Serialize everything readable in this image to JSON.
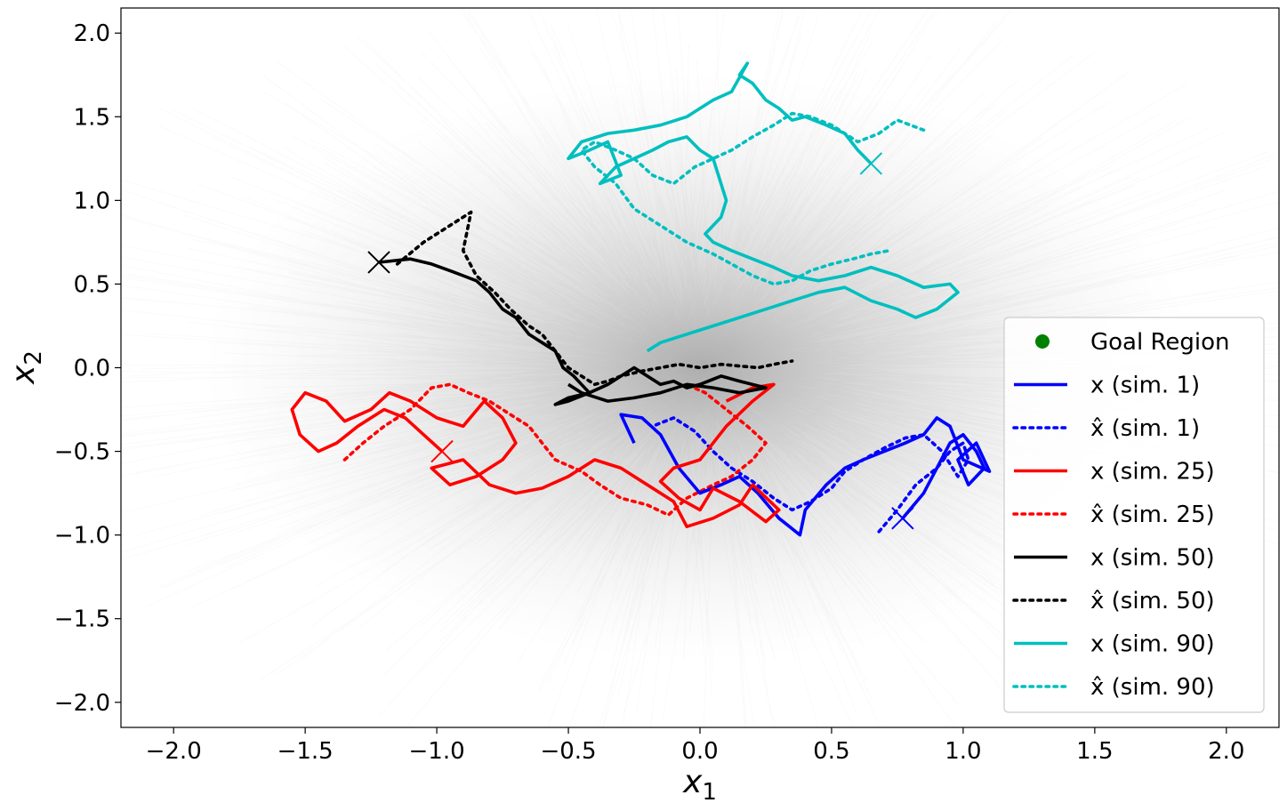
{
  "chart_data": {
    "type": "line",
    "title": "",
    "xlabel": "x",
    "xlabel_sub": "1",
    "ylabel": "x",
    "ylabel_sub": "2",
    "xlim": [
      -2.2,
      2.2
    ],
    "ylim": [
      -2.15,
      2.15
    ],
    "xticks": [
      -2.0,
      -1.5,
      -1.0,
      -0.5,
      0.0,
      0.5,
      1.0,
      1.5,
      2.0
    ],
    "xtick_labels": [
      "−2.0",
      "−1.5",
      "−1.0",
      "−0.5",
      "0.0",
      "0.5",
      "1.0",
      "1.5",
      "2.0"
    ],
    "yticks": [
      2.0,
      1.5,
      1.0,
      0.5,
      0.0,
      -0.5,
      -1.0,
      -1.5,
      -2.0
    ],
    "ytick_labels": [
      "2.0",
      "1.5",
      "1.0",
      "0.5",
      "0.0",
      "−0.5",
      "−1.0",
      "−1.5",
      "−2.0"
    ],
    "grid": false,
    "legend_position": "lower-right",
    "background_cloud": {
      "color": "#8c8c8c",
      "center": [
        0.0,
        0.0
      ],
      "description": "many faint gray simulated trajectories"
    },
    "legend": [
      {
        "label": "Goal Region",
        "marker": "dot",
        "color": "#008000"
      },
      {
        "label": "x (sim. 1)",
        "color": "#0000ff",
        "style": "solid"
      },
      {
        "label": "x̂ (sim. 1)",
        "color": "#0000ff",
        "style": "dotted"
      },
      {
        "label": "x (sim. 25)",
        "color": "#ff0000",
        "style": "solid"
      },
      {
        "label": "x̂ (sim. 25)",
        "color": "#ff0000",
        "style": "dotted"
      },
      {
        "label": "x (sim. 50)",
        "color": "#000000",
        "style": "solid"
      },
      {
        "label": "x̂ (sim. 50)",
        "color": "#000000",
        "style": "dotted"
      },
      {
        "label": "x (sim. 90)",
        "color": "#00bfbf",
        "style": "solid"
      },
      {
        "label": "x̂ (sim. 90)",
        "color": "#00bfbf",
        "style": "dotted"
      }
    ],
    "series": [
      {
        "name": "x (sim. 1)",
        "color": "#0000ff",
        "style": "solid",
        "x": [
          0.77,
          0.85,
          0.9,
          0.95,
          1.0,
          1.05,
          1.08,
          1.02,
          0.98,
          1.05,
          1.1,
          1.0,
          0.95,
          0.9,
          0.85,
          0.78,
          0.7,
          0.62,
          0.55,
          0.48,
          0.4,
          0.38,
          0.3,
          0.22,
          0.15,
          0.08,
          0.0,
          -0.08,
          -0.15,
          -0.22,
          -0.3,
          -0.25
        ],
        "y": [
          -0.9,
          -0.75,
          -0.6,
          -0.45,
          -0.4,
          -0.5,
          -0.6,
          -0.7,
          -0.55,
          -0.45,
          -0.62,
          -0.55,
          -0.35,
          -0.3,
          -0.4,
          -0.45,
          -0.5,
          -0.55,
          -0.6,
          -0.7,
          -0.85,
          -1.0,
          -0.9,
          -0.75,
          -0.65,
          -0.7,
          -0.75,
          -0.6,
          -0.4,
          -0.3,
          -0.28,
          -0.45
        ]
      },
      {
        "name": "x̂ (sim. 1)",
        "color": "#0000ff",
        "style": "dotted",
        "x": [
          0.68,
          0.75,
          0.82,
          0.9,
          0.95,
          1.0,
          1.02,
          0.98,
          0.92,
          0.85,
          0.78,
          0.7,
          0.62,
          0.55,
          0.5,
          0.42,
          0.35,
          0.28,
          0.2,
          0.12,
          0.05,
          -0.02,
          -0.1,
          -0.18
        ],
        "y": [
          -0.98,
          -0.85,
          -0.7,
          -0.6,
          -0.5,
          -0.45,
          -0.55,
          -0.65,
          -0.5,
          -0.4,
          -0.42,
          -0.48,
          -0.55,
          -0.62,
          -0.72,
          -0.8,
          -0.85,
          -0.78,
          -0.68,
          -0.6,
          -0.5,
          -0.38,
          -0.3,
          -0.35
        ]
      },
      {
        "name": "x (sim. 25)",
        "color": "#ff0000",
        "style": "solid",
        "x": [
          -0.98,
          -1.05,
          -1.12,
          -1.2,
          -1.3,
          -1.38,
          -1.45,
          -1.52,
          -1.55,
          -1.5,
          -1.42,
          -1.35,
          -1.25,
          -1.18,
          -1.1,
          -1.0,
          -0.9,
          -0.82,
          -0.75,
          -0.7,
          -0.75,
          -0.85,
          -0.95,
          -1.02,
          -0.9,
          -0.8,
          -0.7,
          -0.6,
          -0.5,
          -0.4,
          -0.3,
          -0.2,
          -0.1,
          -0.05,
          0.05,
          0.15,
          0.2,
          0.3,
          0.25,
          0.15,
          0.05,
          0.0,
          -0.08,
          -0.15,
          -0.1,
          0.0,
          0.1,
          0.2,
          0.28,
          0.2,
          0.1
        ],
        "y": [
          -0.5,
          -0.4,
          -0.3,
          -0.25,
          -0.35,
          -0.45,
          -0.5,
          -0.4,
          -0.25,
          -0.15,
          -0.2,
          -0.32,
          -0.25,
          -0.15,
          -0.2,
          -0.3,
          -0.35,
          -0.2,
          -0.3,
          -0.45,
          -0.55,
          -0.65,
          -0.7,
          -0.6,
          -0.55,
          -0.7,
          -0.75,
          -0.72,
          -0.65,
          -0.55,
          -0.6,
          -0.7,
          -0.8,
          -0.95,
          -0.9,
          -0.82,
          -0.7,
          -0.85,
          -0.92,
          -0.8,
          -0.72,
          -0.85,
          -0.78,
          -0.68,
          -0.6,
          -0.55,
          -0.35,
          -0.2,
          -0.1,
          -0.12,
          -0.2
        ]
      },
      {
        "name": "x̂ (sim. 25)",
        "color": "#ff0000",
        "style": "dotted",
        "x": [
          -1.35,
          -1.28,
          -1.2,
          -1.1,
          -1.02,
          -0.95,
          -0.88,
          -0.8,
          -0.72,
          -0.65,
          -0.55,
          -0.45,
          -0.38,
          -0.3,
          -0.2,
          -0.12,
          -0.05,
          0.05,
          0.12,
          0.2,
          0.25,
          0.18,
          0.1,
          0.02,
          -0.05
        ],
        "y": [
          -0.55,
          -0.45,
          -0.35,
          -0.25,
          -0.12,
          -0.1,
          -0.15,
          -0.2,
          -0.28,
          -0.35,
          -0.55,
          -0.62,
          -0.7,
          -0.78,
          -0.82,
          -0.88,
          -0.78,
          -0.7,
          -0.65,
          -0.55,
          -0.45,
          -0.35,
          -0.25,
          -0.15,
          -0.1
        ]
      },
      {
        "name": "x (sim. 50)",
        "color": "#000000",
        "style": "solid",
        "x": [
          -1.22,
          -1.1,
          -1.02,
          -0.95,
          -0.9,
          -0.85,
          -0.8,
          -0.75,
          -0.7,
          -0.65,
          -0.6,
          -0.55,
          -0.52,
          -0.48,
          -0.45,
          -0.42,
          -0.5,
          -0.55,
          -0.5,
          -0.42,
          -0.35,
          -0.3,
          -0.25,
          -0.2,
          -0.15,
          -0.1,
          -0.05,
          0.0,
          0.08,
          0.15,
          0.25,
          0.15,
          0.05,
          -0.05,
          -0.15,
          -0.25,
          -0.35,
          -0.45,
          -0.5
        ],
        "y": [
          0.63,
          0.65,
          0.62,
          0.58,
          0.55,
          0.52,
          0.45,
          0.35,
          0.3,
          0.2,
          0.15,
          0.1,
          0.0,
          -0.05,
          -0.1,
          -0.15,
          -0.2,
          -0.22,
          -0.18,
          -0.15,
          -0.1,
          -0.05,
          0.0,
          -0.05,
          -0.1,
          -0.08,
          -0.12,
          -0.1,
          -0.05,
          -0.08,
          -0.12,
          -0.15,
          -0.12,
          -0.1,
          -0.15,
          -0.18,
          -0.2,
          -0.15,
          -0.1
        ]
      },
      {
        "name": "x̂ (sim. 50)",
        "color": "#000000",
        "style": "dotted",
        "x": [
          -1.15,
          -1.05,
          -0.95,
          -0.87,
          -0.9,
          -0.85,
          -0.78,
          -0.72,
          -0.65,
          -0.6,
          -0.55,
          -0.5,
          -0.45,
          -0.4,
          -0.35,
          -0.3,
          -0.22,
          -0.15,
          -0.08,
          0.0,
          0.08,
          0.15,
          0.22,
          0.28,
          0.35
        ],
        "y": [
          0.62,
          0.75,
          0.85,
          0.93,
          0.7,
          0.55,
          0.45,
          0.35,
          0.25,
          0.2,
          0.1,
          0.0,
          -0.05,
          -0.1,
          -0.08,
          -0.05,
          -0.02,
          0.0,
          0.02,
          0.0,
          0.02,
          0.01,
          0.0,
          0.02,
          0.04
        ]
      },
      {
        "name": "x (sim. 90)",
        "color": "#00bfbf",
        "style": "solid",
        "x": [
          0.65,
          0.6,
          0.55,
          0.48,
          0.4,
          0.35,
          0.3,
          0.25,
          0.2,
          0.15,
          0.18,
          0.12,
          0.05,
          -0.05,
          -0.15,
          -0.25,
          -0.35,
          -0.45,
          -0.5,
          -0.42,
          -0.35,
          -0.3,
          -0.38,
          -0.32,
          -0.25,
          -0.18,
          -0.12,
          -0.05,
          0.0,
          0.05,
          0.1,
          0.08,
          0.02,
          0.05,
          0.12,
          0.2,
          0.28,
          0.35,
          0.45,
          0.55,
          0.65,
          0.75,
          0.85,
          0.95,
          0.98,
          0.9,
          0.82,
          0.75,
          0.65,
          0.55,
          0.45,
          0.35,
          0.25,
          0.15,
          0.05,
          -0.05,
          -0.15,
          -0.2
        ],
        "y": [
          1.22,
          1.3,
          1.4,
          1.45,
          1.5,
          1.48,
          1.55,
          1.6,
          1.7,
          1.75,
          1.82,
          1.65,
          1.6,
          1.5,
          1.45,
          1.42,
          1.4,
          1.35,
          1.25,
          1.3,
          1.35,
          1.15,
          1.1,
          1.2,
          1.25,
          1.3,
          1.35,
          1.38,
          1.3,
          1.25,
          1.0,
          0.9,
          0.8,
          0.75,
          0.7,
          0.65,
          0.6,
          0.55,
          0.52,
          0.55,
          0.6,
          0.55,
          0.48,
          0.5,
          0.45,
          0.35,
          0.3,
          0.35,
          0.4,
          0.48,
          0.45,
          0.4,
          0.35,
          0.3,
          0.25,
          0.2,
          0.15,
          0.1
        ]
      },
      {
        "name": "x̂ (sim. 90)",
        "color": "#00bfbf",
        "style": "dotted",
        "x": [
          0.85,
          0.75,
          0.68,
          0.6,
          0.5,
          0.42,
          0.35,
          0.28,
          0.2,
          0.12,
          0.05,
          -0.02,
          -0.1,
          -0.18,
          -0.25,
          -0.32,
          -0.4,
          -0.45,
          -0.4,
          -0.32,
          -0.25,
          -0.15,
          -0.05,
          0.05,
          0.12,
          0.2,
          0.28,
          0.35,
          0.42,
          0.5,
          0.58,
          0.65,
          0.72
        ],
        "y": [
          1.42,
          1.48,
          1.4,
          1.35,
          1.45,
          1.5,
          1.52,
          1.45,
          1.38,
          1.3,
          1.25,
          1.2,
          1.1,
          1.15,
          1.25,
          1.3,
          1.35,
          1.3,
          1.2,
          1.1,
          0.95,
          0.85,
          0.75,
          0.68,
          0.62,
          0.55,
          0.5,
          0.52,
          0.58,
          0.62,
          0.65,
          0.68,
          0.7
        ]
      }
    ],
    "end_markers": [
      {
        "x": 0.77,
        "y": -0.9,
        "color": "#0000ff"
      },
      {
        "x": -0.98,
        "y": -0.5,
        "color": "#ff0000"
      },
      {
        "x": -1.22,
        "y": 0.63,
        "color": "#000000"
      },
      {
        "x": 0.65,
        "y": 1.22,
        "color": "#00bfbf"
      }
    ]
  }
}
